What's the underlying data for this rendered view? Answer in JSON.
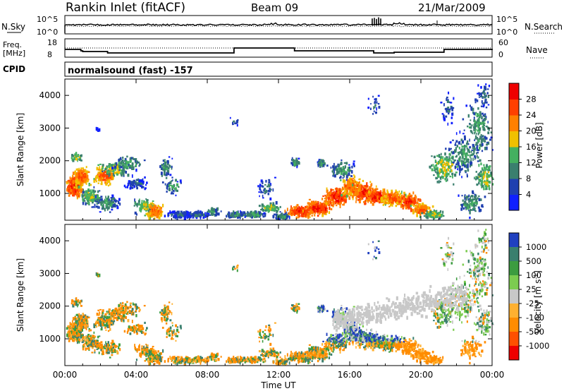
{
  "header": {
    "station": "Rankin Inlet (fitACF)",
    "beam": "Beam 09",
    "date": "21/Mar/2009"
  },
  "noise_panel": {
    "left_label": "N.Sky",
    "right_label": "N.Search",
    "tick_top": "10^5",
    "tick_bottom": "10^0"
  },
  "freq_panel": {
    "left_label_1": "Freq.",
    "left_label_2": "[MHz]",
    "right_label": "Nave",
    "left_tick_top": "18",
    "left_tick_bottom": "8",
    "right_tick_top": "60",
    "right_tick_bottom": "0"
  },
  "cpid": {
    "label": "CPID",
    "value": "normalsound (fast) -157"
  },
  "chart_data": [
    {
      "type": "heatmap",
      "name": "Power",
      "ylabel": "Slant Range [km]",
      "y_ticks": [
        "1000",
        "2000",
        "3000",
        "4000"
      ],
      "ylim": [
        180,
        4500
      ],
      "x_ticks": [
        "00:00",
        "04:00",
        "08:00",
        "12:00",
        "16:00",
        "20:00",
        "00:00"
      ],
      "colorbar_label": "Power [dB]",
      "colorbar_ticks": [
        "4",
        "8",
        "12",
        "16",
        "20",
        "24",
        "28"
      ],
      "colorbar_colors": [
        "#1020ff",
        "#2040b0",
        "#3a7f6e",
        "#44b060",
        "#f0c000",
        "#ff8000",
        "#ff4000",
        "#ee0000"
      ]
    },
    {
      "type": "heatmap",
      "name": "Velocity",
      "ylabel": "Slant Range [km]",
      "y_ticks": [
        "1000",
        "2000",
        "3000",
        "4000"
      ],
      "ylim": [
        180,
        4500
      ],
      "x_ticks": [
        "00:00",
        "04:00",
        "08:00",
        "12:00",
        "16:00",
        "20:00",
        "00:00"
      ],
      "xlabel": "Time UT",
      "colorbar_label": "Velocity [m s^-1]",
      "colorbar_ticks": [
        "1000",
        "500",
        "100",
        "25",
        "-25",
        "-100",
        "-500",
        "-1000"
      ],
      "colorbar_colors": [
        "#2040c0",
        "#3a7f6e",
        "#3c9c40",
        "#7ccc50",
        "#c8c8c8",
        "#ffb030",
        "#ff8c00",
        "#ff5000",
        "#ee0000"
      ]
    }
  ]
}
